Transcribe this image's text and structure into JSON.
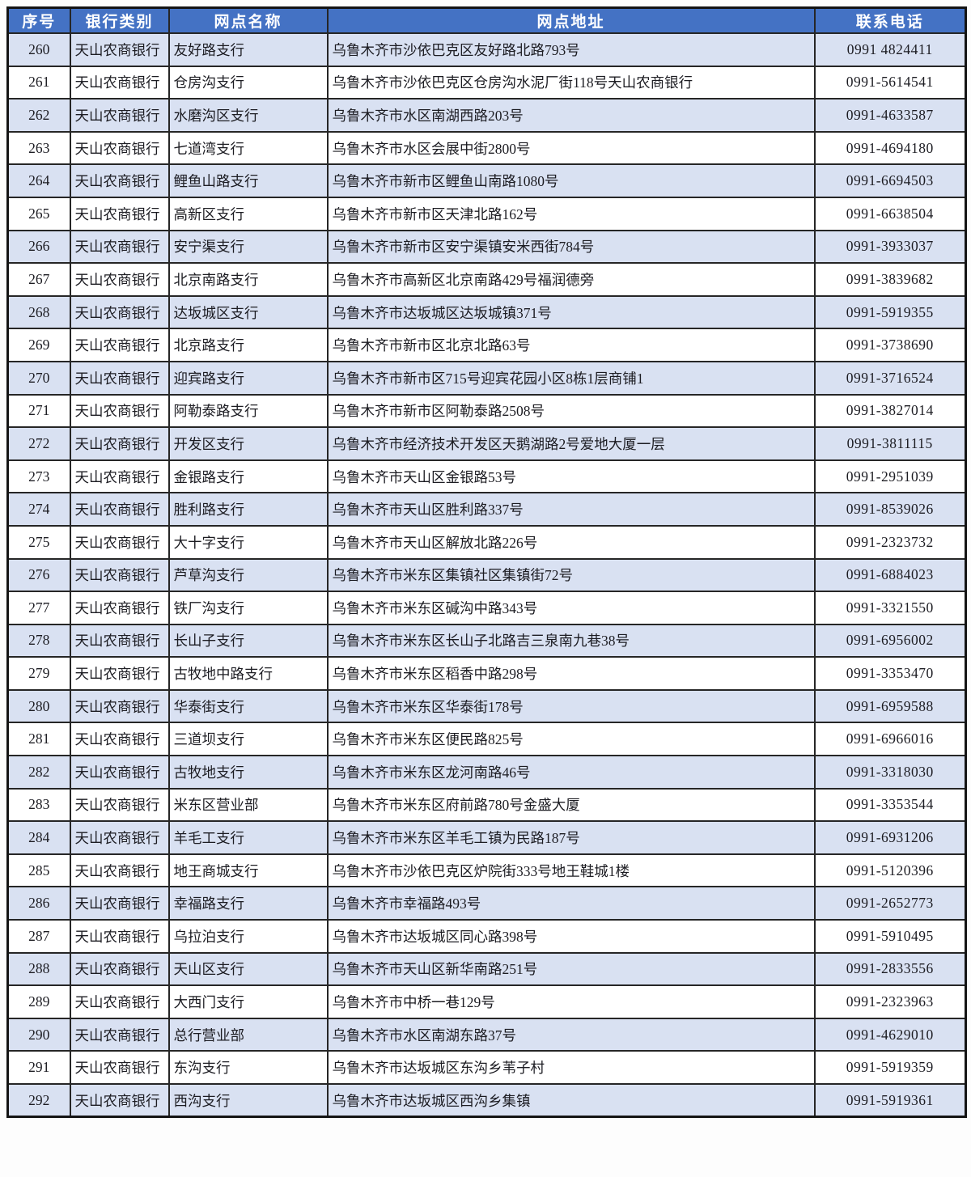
{
  "table": {
    "columns": [
      {
        "key": "index",
        "label": "序号"
      },
      {
        "key": "bank",
        "label": "银行类别"
      },
      {
        "key": "branch",
        "label": "网点名称"
      },
      {
        "key": "addr",
        "label": "网点地址"
      },
      {
        "key": "phone",
        "label": "联系电话"
      }
    ],
    "colors": {
      "header_bg": "#4472C4",
      "header_text": "#FFFFFF",
      "row_alt_bg": "#D9E1F2",
      "row_bg": "#FFFFFF",
      "border": "#262626"
    },
    "rows": [
      {
        "index": "260",
        "bank": "天山农商银行",
        "branch": "友好路支行",
        "addr": "乌鲁木齐市沙依巴克区友好路北路793号",
        "phone": "0991 4824411"
      },
      {
        "index": "261",
        "bank": "天山农商银行",
        "branch": "仓房沟支行",
        "addr": "乌鲁木齐市沙依巴克区仓房沟水泥厂街118号天山农商银行",
        "phone": "0991-5614541"
      },
      {
        "index": "262",
        "bank": "天山农商银行",
        "branch": "水磨沟区支行",
        "addr": "乌鲁木齐市水区南湖西路203号",
        "phone": "0991-4633587"
      },
      {
        "index": "263",
        "bank": "天山农商银行",
        "branch": "七道湾支行",
        "addr": "乌鲁木齐市水区会展中街2800号",
        "phone": "0991-4694180"
      },
      {
        "index": "264",
        "bank": "天山农商银行",
        "branch": "鲤鱼山路支行",
        "addr": "乌鲁木齐市新市区鲤鱼山南路1080号",
        "phone": "0991-6694503"
      },
      {
        "index": "265",
        "bank": "天山农商银行",
        "branch": "高新区支行",
        "addr": "乌鲁木齐市新市区天津北路162号",
        "phone": "0991-6638504"
      },
      {
        "index": "266",
        "bank": "天山农商银行",
        "branch": "安宁渠支行",
        "addr": "乌鲁木齐市新市区安宁渠镇安米西街784号",
        "phone": "0991-3933037"
      },
      {
        "index": "267",
        "bank": "天山农商银行",
        "branch": "北京南路支行",
        "addr": "乌鲁木齐市高新区北京南路429号福润德旁",
        "phone": "0991-3839682"
      },
      {
        "index": "268",
        "bank": "天山农商银行",
        "branch": "达坂城区支行",
        "addr": "乌鲁木齐市达坂城区达坂城镇371号",
        "phone": "0991-5919355"
      },
      {
        "index": "269",
        "bank": "天山农商银行",
        "branch": "北京路支行",
        "addr": "乌鲁木齐市新市区北京北路63号",
        "phone": "0991-3738690"
      },
      {
        "index": "270",
        "bank": "天山农商银行",
        "branch": "迎宾路支行",
        "addr": "乌鲁木齐市新市区715号迎宾花园小区8栋1层商铺1",
        "phone": "0991-3716524"
      },
      {
        "index": "271",
        "bank": "天山农商银行",
        "branch": "阿勒泰路支行",
        "addr": "乌鲁木齐市新市区阿勒泰路2508号",
        "phone": "0991-3827014"
      },
      {
        "index": "272",
        "bank": "天山农商银行",
        "branch": "开发区支行",
        "addr": "乌鲁木齐市经济技术开发区天鹅湖路2号爱地大厦一层",
        "phone": "0991-3811115"
      },
      {
        "index": "273",
        "bank": "天山农商银行",
        "branch": "金银路支行",
        "addr": "乌鲁木齐市天山区金银路53号",
        "phone": "0991-2951039"
      },
      {
        "index": "274",
        "bank": "天山农商银行",
        "branch": "胜利路支行",
        "addr": "乌鲁木齐市天山区胜利路337号",
        "phone": "0991-8539026"
      },
      {
        "index": "275",
        "bank": "天山农商银行",
        "branch": "大十字支行",
        "addr": "乌鲁木齐市天山区解放北路226号",
        "phone": "0991-2323732"
      },
      {
        "index": "276",
        "bank": "天山农商银行",
        "branch": "芦草沟支行",
        "addr": "乌鲁木齐市米东区集镇社区集镇街72号",
        "phone": "0991-6884023"
      },
      {
        "index": "277",
        "bank": "天山农商银行",
        "branch": "铁厂沟支行",
        "addr": "乌鲁木齐市米东区碱沟中路343号",
        "phone": "0991-3321550"
      },
      {
        "index": "278",
        "bank": "天山农商银行",
        "branch": "长山子支行",
        "addr": "乌鲁木齐市米东区长山子北路吉三泉南九巷38号",
        "phone": "0991-6956002"
      },
      {
        "index": "279",
        "bank": "天山农商银行",
        "branch": "古牧地中路支行",
        "addr": "乌鲁木齐市米东区稻香中路298号",
        "phone": "0991-3353470"
      },
      {
        "index": "280",
        "bank": "天山农商银行",
        "branch": "华泰街支行",
        "addr": "乌鲁木齐市米东区华泰街178号",
        "phone": "0991-6959588"
      },
      {
        "index": "281",
        "bank": "天山农商银行",
        "branch": "三道坝支行",
        "addr": "乌鲁木齐市米东区便民路825号",
        "phone": "0991-6966016"
      },
      {
        "index": "282",
        "bank": "天山农商银行",
        "branch": "古牧地支行",
        "addr": "乌鲁木齐市米东区龙河南路46号",
        "phone": "0991-3318030"
      },
      {
        "index": "283",
        "bank": "天山农商银行",
        "branch": "米东区营业部",
        "addr": "乌鲁木齐市米东区府前路780号金盛大厦",
        "phone": "0991-3353544"
      },
      {
        "index": "284",
        "bank": "天山农商银行",
        "branch": "羊毛工支行",
        "addr": "乌鲁木齐市米东区羊毛工镇为民路187号",
        "phone": "0991-6931206"
      },
      {
        "index": "285",
        "bank": "天山农商银行",
        "branch": "地王商城支行",
        "addr": "乌鲁木齐市沙依巴克区炉院街333号地王鞋城1楼",
        "phone": "0991-5120396"
      },
      {
        "index": "286",
        "bank": "天山农商银行",
        "branch": "幸福路支行",
        "addr": "乌鲁木齐市幸福路493号",
        "phone": "0991-2652773"
      },
      {
        "index": "287",
        "bank": "天山农商银行",
        "branch": "乌拉泊支行",
        "addr": "乌鲁木齐市达坂城区同心路398号",
        "phone": "0991-5910495"
      },
      {
        "index": "288",
        "bank": "天山农商银行",
        "branch": "天山区支行",
        "addr": "乌鲁木齐市天山区新华南路251号",
        "phone": "0991-2833556"
      },
      {
        "index": "289",
        "bank": "天山农商银行",
        "branch": "大西门支行",
        "addr": "乌鲁木齐市中桥一巷129号",
        "phone": "0991-2323963"
      },
      {
        "index": "290",
        "bank": "天山农商银行",
        "branch": "总行营业部",
        "addr": "乌鲁木齐市水区南湖东路37号",
        "phone": "0991-4629010"
      },
      {
        "index": "291",
        "bank": "天山农商银行",
        "branch": "东沟支行",
        "addr": "乌鲁木齐市达坂城区东沟乡苇子村",
        "phone": "0991-5919359"
      },
      {
        "index": "292",
        "bank": "天山农商银行",
        "branch": "西沟支行",
        "addr": "乌鲁木齐市达坂城区西沟乡集镇",
        "phone": "0991-5919361"
      }
    ]
  }
}
